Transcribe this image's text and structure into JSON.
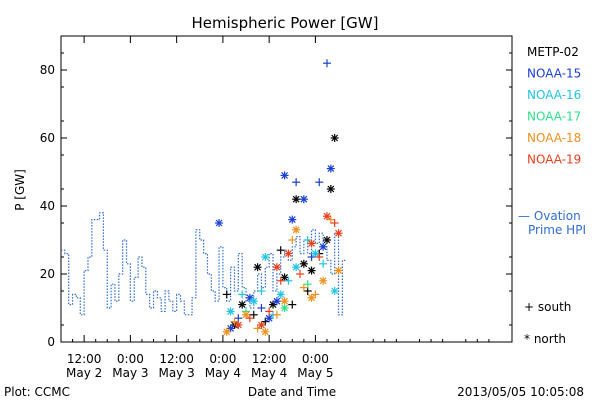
{
  "chart_data": {
    "type": "scatter",
    "title": "Hemispheric Power [GW]",
    "ylabel": "P [GW]",
    "xlabel": "Date and Time",
    "ylim": [
      0,
      90
    ],
    "yticks": [
      0,
      20,
      40,
      60,
      80
    ],
    "x_unit": "hours since 00:00 May 2",
    "xlim": [
      6,
      123
    ],
    "xticks": [
      {
        "x": 12,
        "line1": "12:00",
        "line2": "May 2"
      },
      {
        "x": 24,
        "line1": "0:00",
        "line2": "May 3"
      },
      {
        "x": 36,
        "line1": "12:00",
        "line2": "May 3"
      },
      {
        "x": 48,
        "line1": "0:00",
        "line2": "May 4"
      },
      {
        "x": 60,
        "line1": "12:00",
        "line2": "May 4"
      },
      {
        "x": 72,
        "line1": "0:00",
        "line2": "May 5"
      }
    ],
    "footer_left": "Plot: CCMC",
    "footer_right": "2013/05/05 10:05:08",
    "legend_placement": "right",
    "legend": [
      {
        "name": "METP-02",
        "color": "#000000"
      },
      {
        "name": "NOAA-15",
        "color": "#1a3fd4"
      },
      {
        "name": "NOAA-16",
        "color": "#22c3e6"
      },
      {
        "name": "NOAA-17",
        "color": "#2ee08a"
      },
      {
        "name": "NOAA-18",
        "color": "#f0901e"
      },
      {
        "name": "NOAA-19",
        "color": "#e8401c"
      }
    ],
    "ovation": {
      "label_line1": "— Ovation",
      "label_line2": "Prime HPI",
      "color": "#2f6fd0",
      "steps": [
        [
          6,
          27
        ],
        [
          7,
          26
        ],
        [
          8,
          11
        ],
        [
          9,
          14
        ],
        [
          10,
          13
        ],
        [
          11,
          8
        ],
        [
          12,
          21
        ],
        [
          13,
          25
        ],
        [
          14,
          36
        ],
        [
          16,
          38
        ],
        [
          17,
          27
        ],
        [
          18,
          10
        ],
        [
          19,
          17
        ],
        [
          20,
          12
        ],
        [
          21,
          20
        ],
        [
          22,
          30
        ],
        [
          23,
          23
        ],
        [
          24,
          12
        ],
        [
          25,
          19
        ],
        [
          26,
          25
        ],
        [
          27,
          22
        ],
        [
          28,
          14
        ],
        [
          29,
          10
        ],
        [
          30,
          15
        ],
        [
          31,
          13
        ],
        [
          32,
          9
        ],
        [
          33,
          15
        ],
        [
          34,
          12
        ],
        [
          35,
          9
        ],
        [
          36,
          14
        ],
        [
          37,
          12
        ],
        [
          38,
          8
        ],
        [
          40,
          13
        ],
        [
          41,
          33
        ],
        [
          42,
          30
        ],
        [
          43,
          26
        ],
        [
          44,
          20
        ],
        [
          45,
          15
        ],
        [
          46,
          12
        ],
        [
          47,
          28
        ],
        [
          48,
          16
        ],
        [
          49,
          12
        ],
        [
          50,
          22
        ],
        [
          51,
          15
        ],
        [
          52,
          26
        ],
        [
          53,
          16
        ],
        [
          54,
          12
        ],
        [
          55,
          10
        ],
        [
          56,
          15
        ],
        [
          57,
          20
        ],
        [
          58,
          16
        ],
        [
          59,
          22
        ],
        [
          60,
          26
        ],
        [
          61,
          15
        ],
        [
          62,
          20
        ],
        [
          63,
          25
        ],
        [
          64,
          27
        ],
        [
          65,
          24
        ],
        [
          66,
          28
        ],
        [
          67,
          31
        ],
        [
          68,
          26
        ],
        [
          69,
          30
        ],
        [
          70,
          26
        ],
        [
          71,
          33
        ],
        [
          72,
          29
        ],
        [
          73,
          32
        ],
        [
          74,
          28
        ],
        [
          75,
          24
        ],
        [
          76,
          20
        ],
        [
          77,
          32
        ],
        [
          78,
          8
        ],
        [
          79,
          24
        ]
      ]
    },
    "markers": {
      "south_label": "+ south",
      "north_label": "* north"
    },
    "points": [
      {
        "sat": "METP-02",
        "hem": "south",
        "x": 49,
        "y": 14
      },
      {
        "sat": "METP-02",
        "hem": "north",
        "x": 51,
        "y": 5
      },
      {
        "sat": "METP-02",
        "hem": "north",
        "x": 53,
        "y": 11
      },
      {
        "sat": "METP-02",
        "hem": "south",
        "x": 56,
        "y": 8
      },
      {
        "sat": "METP-02",
        "hem": "north",
        "x": 57,
        "y": 22
      },
      {
        "sat": "METP-02",
        "hem": "south",
        "x": 59,
        "y": 6
      },
      {
        "sat": "METP-02",
        "hem": "north",
        "x": 61,
        "y": 11
      },
      {
        "sat": "METP-02",
        "hem": "south",
        "x": 63,
        "y": 27
      },
      {
        "sat": "METP-02",
        "hem": "north",
        "x": 64,
        "y": 19
      },
      {
        "sat": "METP-02",
        "hem": "south",
        "x": 66,
        "y": 11
      },
      {
        "sat": "METP-02",
        "hem": "north",
        "x": 67,
        "y": 42
      },
      {
        "sat": "METP-02",
        "hem": "north",
        "x": 69,
        "y": 23
      },
      {
        "sat": "METP-02",
        "hem": "south",
        "x": 70,
        "y": 15
      },
      {
        "sat": "METP-02",
        "hem": "north",
        "x": 71,
        "y": 21
      },
      {
        "sat": "METP-02",
        "hem": "south",
        "x": 73,
        "y": 26
      },
      {
        "sat": "METP-02",
        "hem": "north",
        "x": 75,
        "y": 30
      },
      {
        "sat": "METP-02",
        "hem": "north",
        "x": 76,
        "y": 45
      },
      {
        "sat": "METP-02",
        "hem": "north",
        "x": 77,
        "y": 60
      },
      {
        "sat": "NOAA-15",
        "hem": "north",
        "x": 47,
        "y": 35
      },
      {
        "sat": "NOAA-15",
        "hem": "north",
        "x": 50,
        "y": 4
      },
      {
        "sat": "NOAA-15",
        "hem": "south",
        "x": 52,
        "y": 7
      },
      {
        "sat": "NOAA-15",
        "hem": "north",
        "x": 55,
        "y": 13
      },
      {
        "sat": "NOAA-15",
        "hem": "south",
        "x": 58,
        "y": 10
      },
      {
        "sat": "NOAA-15",
        "hem": "north",
        "x": 60,
        "y": 7
      },
      {
        "sat": "NOAA-15",
        "hem": "north",
        "x": 62,
        "y": 12
      },
      {
        "sat": "NOAA-15",
        "hem": "north",
        "x": 64,
        "y": 49
      },
      {
        "sat": "NOAA-15",
        "hem": "north",
        "x": 66,
        "y": 36
      },
      {
        "sat": "NOAA-15",
        "hem": "south",
        "x": 67,
        "y": 47
      },
      {
        "sat": "NOAA-15",
        "hem": "north",
        "x": 69,
        "y": 42
      },
      {
        "sat": "NOAA-15",
        "hem": "south",
        "x": 71,
        "y": 25
      },
      {
        "sat": "NOAA-15",
        "hem": "south",
        "x": 73,
        "y": 47
      },
      {
        "sat": "NOAA-15",
        "hem": "south",
        "x": 75,
        "y": 82
      },
      {
        "sat": "NOAA-15",
        "hem": "north",
        "x": 76,
        "y": 51
      },
      {
        "sat": "NOAA-15",
        "hem": "north",
        "x": 74,
        "y": 28
      },
      {
        "sat": "NOAA-16",
        "hem": "north",
        "x": 50,
        "y": 9
      },
      {
        "sat": "NOAA-16",
        "hem": "south",
        "x": 53,
        "y": 14
      },
      {
        "sat": "NOAA-16",
        "hem": "north",
        "x": 56,
        "y": 12
      },
      {
        "sat": "NOAA-16",
        "hem": "south",
        "x": 58,
        "y": 15
      },
      {
        "sat": "NOAA-16",
        "hem": "north",
        "x": 59,
        "y": 25
      },
      {
        "sat": "NOAA-16",
        "hem": "south",
        "x": 61,
        "y": 8
      },
      {
        "sat": "NOAA-16",
        "hem": "north",
        "x": 63,
        "y": 14
      },
      {
        "sat": "NOAA-16",
        "hem": "south",
        "x": 65,
        "y": 18
      },
      {
        "sat": "NOAA-16",
        "hem": "north",
        "x": 67,
        "y": 22
      },
      {
        "sat": "NOAA-16",
        "hem": "south",
        "x": 70,
        "y": 30
      },
      {
        "sat": "NOAA-16",
        "hem": "north",
        "x": 72,
        "y": 26
      },
      {
        "sat": "NOAA-16",
        "hem": "south",
        "x": 74,
        "y": 23
      },
      {
        "sat": "NOAA-16",
        "hem": "north",
        "x": 77,
        "y": 15
      },
      {
        "sat": "NOAA-17",
        "hem": "south",
        "x": 54,
        "y": 9
      },
      {
        "sat": "NOAA-17",
        "hem": "north",
        "x": 64,
        "y": 10
      },
      {
        "sat": "NOAA-17",
        "hem": "south",
        "x": 70,
        "y": 17
      },
      {
        "sat": "NOAA-18",
        "hem": "north",
        "x": 49,
        "y": 3
      },
      {
        "sat": "NOAA-18",
        "hem": "south",
        "x": 51,
        "y": 6
      },
      {
        "sat": "NOAA-18",
        "hem": "north",
        "x": 54,
        "y": 8
      },
      {
        "sat": "NOAA-18",
        "hem": "south",
        "x": 57,
        "y": 4
      },
      {
        "sat": "NOAA-18",
        "hem": "north",
        "x": 59,
        "y": 3
      },
      {
        "sat": "NOAA-18",
        "hem": "south",
        "x": 62,
        "y": 8
      },
      {
        "sat": "NOAA-18",
        "hem": "north",
        "x": 64,
        "y": 12
      },
      {
        "sat": "NOAA-18",
        "hem": "south",
        "x": 66,
        "y": 30
      },
      {
        "sat": "NOAA-18",
        "hem": "north",
        "x": 67,
        "y": 33
      },
      {
        "sat": "NOAA-18",
        "hem": "south",
        "x": 69,
        "y": 16
      },
      {
        "sat": "NOAA-18",
        "hem": "north",
        "x": 71,
        "y": 13
      },
      {
        "sat": "NOAA-18",
        "hem": "south",
        "x": 72,
        "y": 14
      },
      {
        "sat": "NOAA-18",
        "hem": "north",
        "x": 74,
        "y": 18
      },
      {
        "sat": "NOAA-18",
        "hem": "south",
        "x": 76,
        "y": 36
      },
      {
        "sat": "NOAA-18",
        "hem": "north",
        "x": 78,
        "y": 21
      },
      {
        "sat": "NOAA-19",
        "hem": "north",
        "x": 52,
        "y": 5
      },
      {
        "sat": "NOAA-19",
        "hem": "south",
        "x": 55,
        "y": 7
      },
      {
        "sat": "NOAA-19",
        "hem": "north",
        "x": 58,
        "y": 5
      },
      {
        "sat": "NOAA-19",
        "hem": "south",
        "x": 60,
        "y": 9
      },
      {
        "sat": "NOAA-19",
        "hem": "north",
        "x": 62,
        "y": 22
      },
      {
        "sat": "NOAA-19",
        "hem": "south",
        "x": 63,
        "y": 18
      },
      {
        "sat": "NOAA-19",
        "hem": "north",
        "x": 65,
        "y": 26
      },
      {
        "sat": "NOAA-19",
        "hem": "south",
        "x": 68,
        "y": 20
      },
      {
        "sat": "NOAA-19",
        "hem": "north",
        "x": 71,
        "y": 29
      },
      {
        "sat": "NOAA-19",
        "hem": "south",
        "x": 73,
        "y": 25
      },
      {
        "sat": "NOAA-19",
        "hem": "north",
        "x": 75,
        "y": 37
      },
      {
        "sat": "NOAA-19",
        "hem": "south",
        "x": 77,
        "y": 35
      },
      {
        "sat": "NOAA-19",
        "hem": "north",
        "x": 78,
        "y": 32
      }
    ]
  }
}
